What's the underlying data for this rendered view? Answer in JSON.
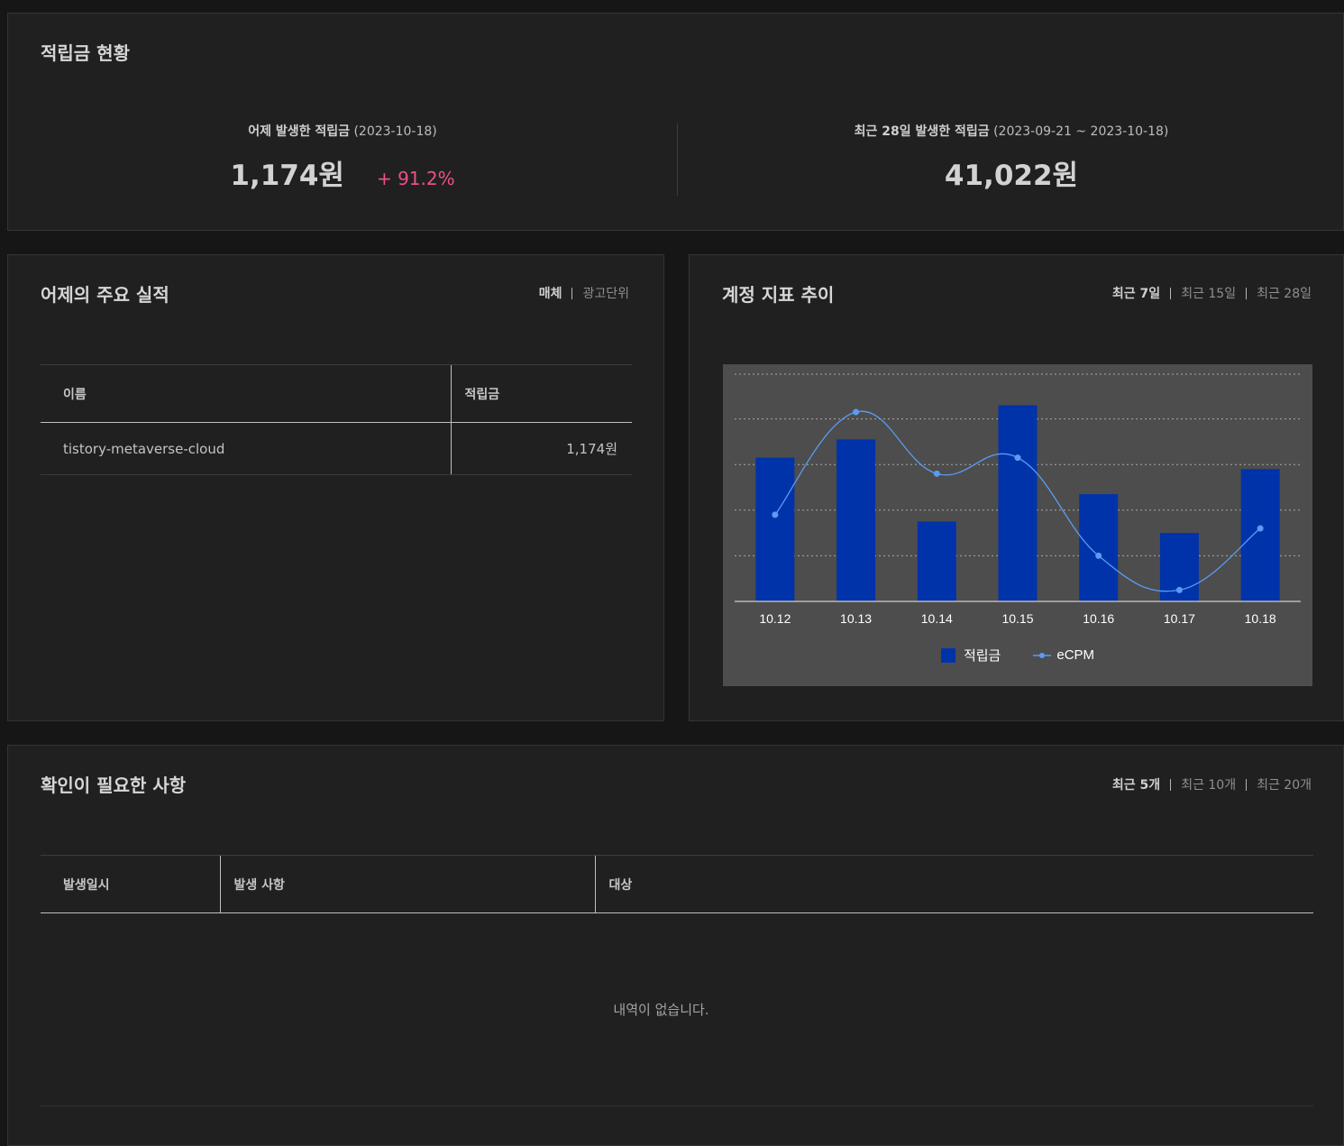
{
  "summary": {
    "title": "적립금 현황",
    "yesterday": {
      "label_bold": "어제 발생한 적립금",
      "label_date": "(2023-10-18)",
      "value": "1,174원",
      "rate": "+ 91.2%"
    },
    "last28": {
      "label_bold": "최근 28일 발생한 적립금",
      "label_date": "(2023-09-21 ~ 2023-10-18)",
      "value": "41,022원"
    }
  },
  "performance": {
    "title": "어제의 주요 실적",
    "filters": [
      "매체",
      "광고단위"
    ],
    "columns": [
      "이름",
      "적립금"
    ],
    "rows": [
      {
        "name": "tistory-metaverse-cloud",
        "amount": "1,174원"
      }
    ]
  },
  "trend": {
    "title": "계정 지표 추이",
    "filters": [
      "최근 7일",
      "최근 15일",
      "최근 28일"
    ]
  },
  "chart_data": {
    "type": "bar",
    "categories": [
      "10.12",
      "10.13",
      "10.14",
      "10.15",
      "10.16",
      "10.17",
      "10.18"
    ],
    "series": [
      {
        "name": "적립금",
        "type": "bar",
        "values": [
          63,
          71,
          35,
          86,
          47,
          30,
          58
        ]
      },
      {
        "name": "eCPM",
        "type": "line",
        "values": [
          38,
          83,
          56,
          63,
          20,
          5,
          32
        ]
      }
    ],
    "ylim": [
      0,
      100
    ],
    "grid": true,
    "legend": "bottom",
    "colors": {
      "bar": "#0033aa",
      "line": "#5b9bf2"
    }
  },
  "check": {
    "title": "확인이 필요한 사항",
    "filters": [
      "최근 5개",
      "최근 10개",
      "최근 20개"
    ],
    "columns": [
      "발생일시",
      "발생 사항",
      "대상"
    ],
    "empty_message": "내역이 없습니다."
  }
}
